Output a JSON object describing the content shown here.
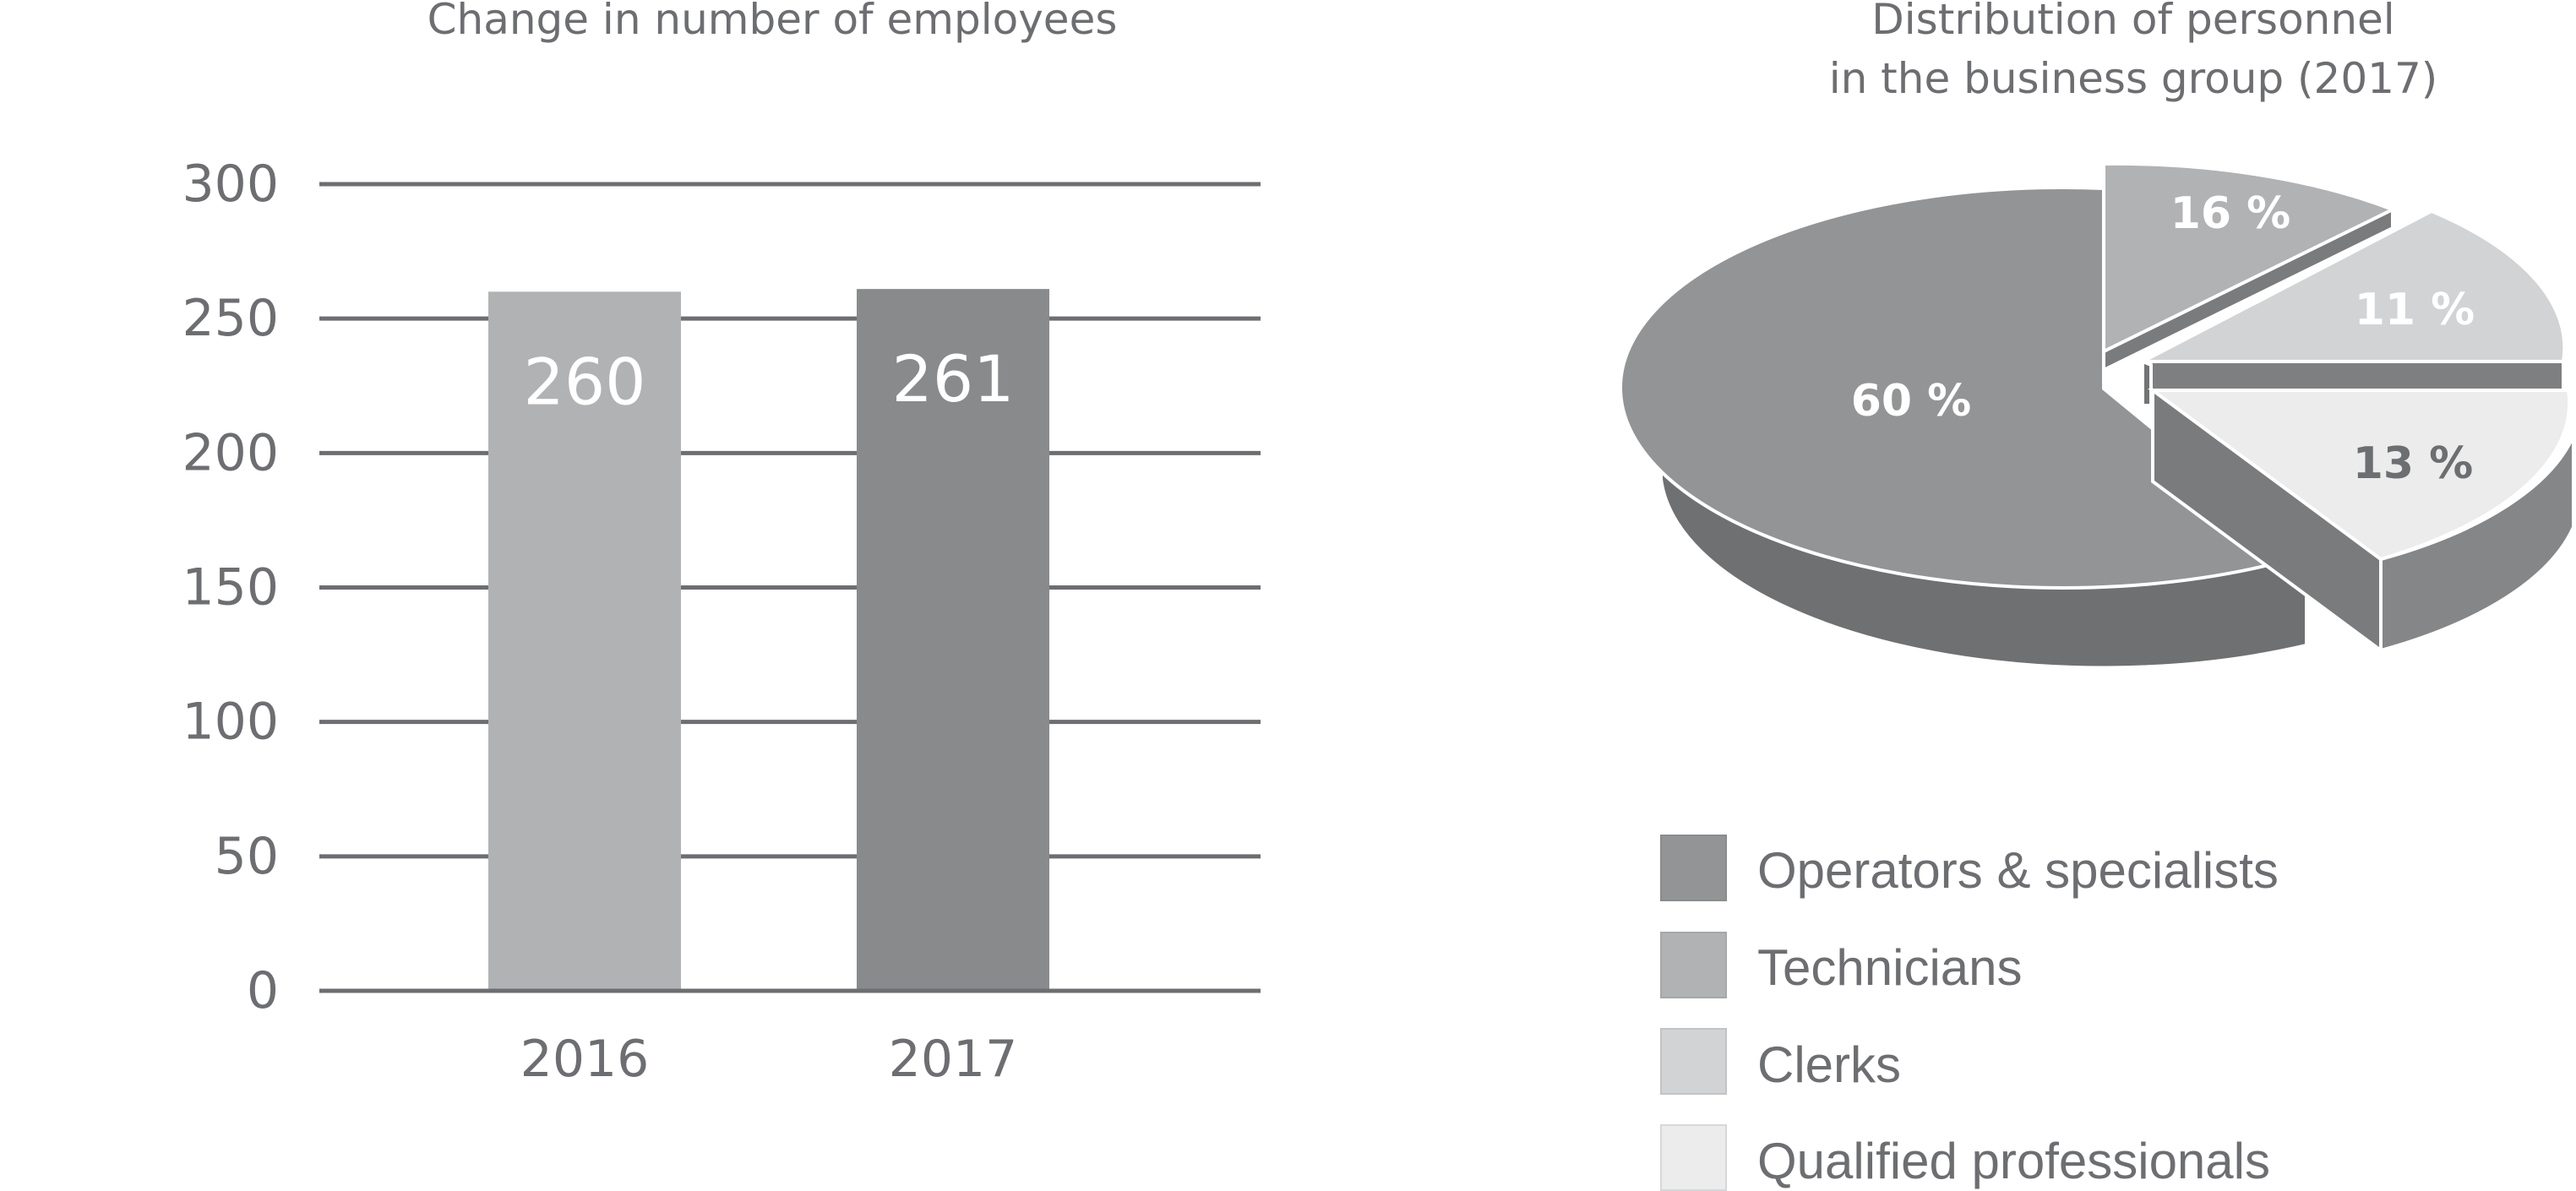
{
  "chart_data": [
    {
      "type": "bar",
      "title": "Change in number of employees",
      "categories": [
        "2016",
        "2017"
      ],
      "values": [
        260,
        261
      ],
      "value_labels": [
        "260",
        "261"
      ],
      "colors": [
        "#b1b2b3",
        "#898a8b"
      ],
      "ylim": [
        0,
        300
      ],
      "yticks": [
        "0",
        "50",
        "100",
        "150",
        "200",
        "250",
        "300"
      ],
      "grid": true
    },
    {
      "type": "pie",
      "title_lines": [
        "Distribution of personnel",
        "in the business group (2017)"
      ],
      "labels": [
        "Operators & specialists",
        "Technicians",
        "Clerks",
        "Qualified professionals"
      ],
      "values": [
        60,
        16,
        11,
        13
      ],
      "value_labels": [
        "60 %",
        "16 %",
        "11 %",
        "13 %"
      ],
      "colors": [
        "#939495",
        "#b1b2b3",
        "#d2d3d4",
        "#ebeceb"
      ],
      "legend": "bottom"
    }
  ]
}
